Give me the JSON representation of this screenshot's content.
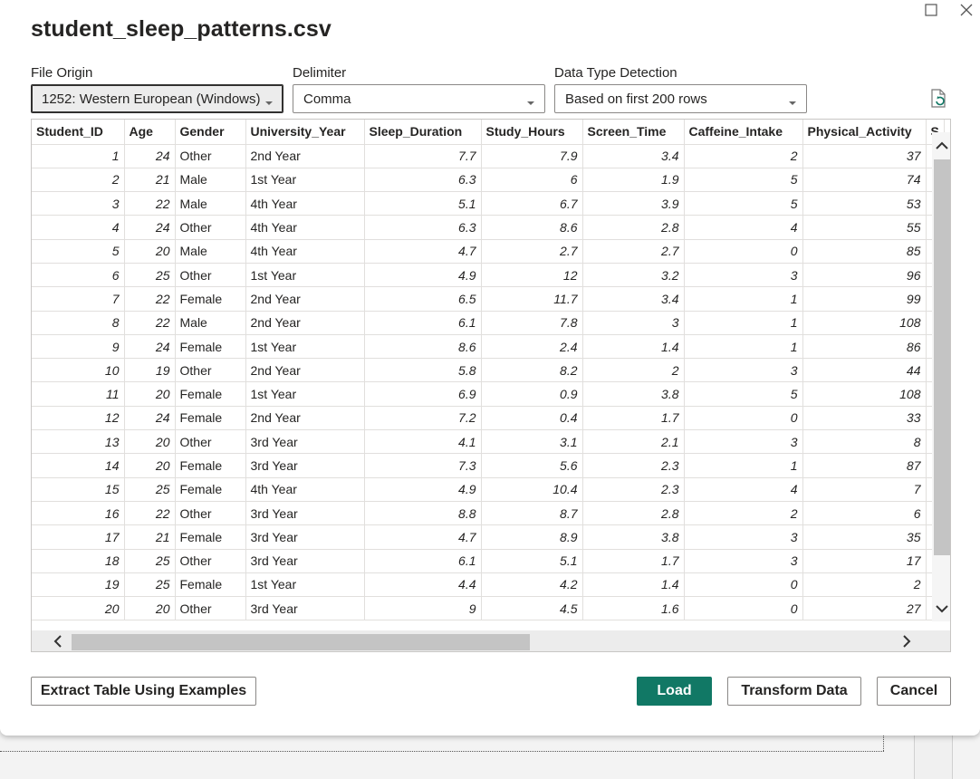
{
  "dialog": {
    "title": "student_sleep_patterns.csv"
  },
  "file_origin": {
    "label": "File Origin",
    "value": "1252: Western European (Windows)"
  },
  "delimiter": {
    "label": "Delimiter",
    "value": "Comma"
  },
  "detection": {
    "label": "Data Type Detection",
    "value": "Based on first 200 rows"
  },
  "table": {
    "columns": [
      "Student_ID",
      "Age",
      "Gender",
      "University_Year",
      "Sleep_Duration",
      "Study_Hours",
      "Screen_Time",
      "Caffeine_Intake",
      "Physical_Activity",
      "S"
    ],
    "rows": [
      [
        "1",
        "24",
        "Other",
        "2nd Year",
        "7.7",
        "7.9",
        "3.4",
        "2",
        "37"
      ],
      [
        "2",
        "21",
        "Male",
        "1st Year",
        "6.3",
        "6",
        "1.9",
        "5",
        "74"
      ],
      [
        "3",
        "22",
        "Male",
        "4th Year",
        "5.1",
        "6.7",
        "3.9",
        "5",
        "53"
      ],
      [
        "4",
        "24",
        "Other",
        "4th Year",
        "6.3",
        "8.6",
        "2.8",
        "4",
        "55"
      ],
      [
        "5",
        "20",
        "Male",
        "4th Year",
        "4.7",
        "2.7",
        "2.7",
        "0",
        "85"
      ],
      [
        "6",
        "25",
        "Other",
        "1st Year",
        "4.9",
        "12",
        "3.2",
        "3",
        "96"
      ],
      [
        "7",
        "22",
        "Female",
        "2nd Year",
        "6.5",
        "11.7",
        "3.4",
        "1",
        "99"
      ],
      [
        "8",
        "22",
        "Male",
        "2nd Year",
        "6.1",
        "7.8",
        "3",
        "1",
        "108"
      ],
      [
        "9",
        "24",
        "Female",
        "1st Year",
        "8.6",
        "2.4",
        "1.4",
        "1",
        "86"
      ],
      [
        "10",
        "19",
        "Other",
        "2nd Year",
        "5.8",
        "8.2",
        "2",
        "3",
        "44"
      ],
      [
        "11",
        "20",
        "Female",
        "1st Year",
        "6.9",
        "0.9",
        "3.8",
        "5",
        "108"
      ],
      [
        "12",
        "24",
        "Female",
        "2nd Year",
        "7.2",
        "0.4",
        "1.7",
        "0",
        "33"
      ],
      [
        "13",
        "20",
        "Other",
        "3rd Year",
        "4.1",
        "3.1",
        "2.1",
        "3",
        "8"
      ],
      [
        "14",
        "20",
        "Female",
        "3rd Year",
        "7.3",
        "5.6",
        "2.3",
        "1",
        "87"
      ],
      [
        "15",
        "25",
        "Female",
        "4th Year",
        "4.9",
        "10.4",
        "2.3",
        "4",
        "7"
      ],
      [
        "16",
        "22",
        "Other",
        "3rd Year",
        "8.8",
        "8.7",
        "2.8",
        "2",
        "6"
      ],
      [
        "17",
        "21",
        "Female",
        "3rd Year",
        "4.7",
        "8.9",
        "3.8",
        "3",
        "35"
      ],
      [
        "18",
        "25",
        "Other",
        "3rd Year",
        "6.1",
        "5.1",
        "1.7",
        "3",
        "17"
      ],
      [
        "19",
        "25",
        "Female",
        "1st Year",
        "4.4",
        "4.2",
        "1.4",
        "0",
        "2"
      ],
      [
        "20",
        "20",
        "Other",
        "3rd Year",
        "9",
        "4.5",
        "1.6",
        "0",
        "27"
      ]
    ]
  },
  "buttons": {
    "extract": "Extract Table Using Examples",
    "load": "Load",
    "transform": "Transform Data",
    "cancel": "Cancel"
  },
  "colors": {
    "primary": "#117865",
    "border": "#8a8886"
  },
  "icons": [
    "maximize-icon",
    "close-icon",
    "chevron-down-icon",
    "refresh-icon",
    "scroll-up-icon",
    "scroll-down-icon",
    "scroll-left-icon",
    "scroll-right-icon"
  ]
}
